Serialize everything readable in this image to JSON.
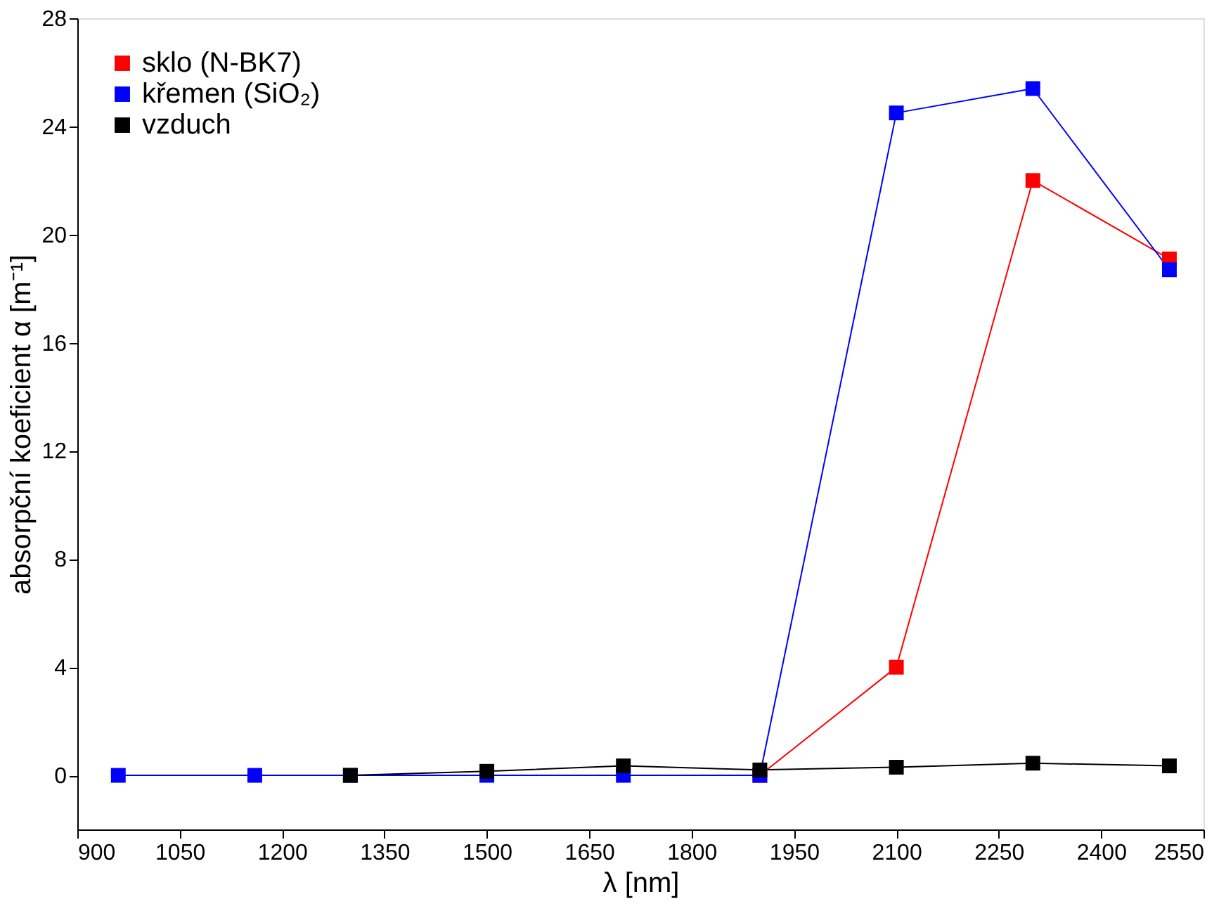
{
  "chart_data": {
    "type": "line",
    "xlabel": "λ [nm]",
    "ylabel": "absorpční koeficient α [m⁻¹]",
    "series": [
      {
        "name": "sklo (N-BK7)",
        "color": "#ff0000",
        "x": [
          1900,
          2100,
          2300,
          2500
        ],
        "values": [
          0,
          4.0,
          22.0,
          19.1
        ]
      },
      {
        "name": "křemen (SiO₂)",
        "color": "#0000ff",
        "x": [
          960,
          1160,
          1300,
          1500,
          1700,
          1900,
          2100,
          2300,
          2500
        ],
        "values": [
          0,
          0,
          0,
          0,
          0,
          0,
          24.5,
          25.4,
          18.7
        ]
      },
      {
        "name": "vzduch",
        "color": "#000000",
        "x": [
          1300,
          1500,
          1700,
          1900,
          2100,
          2300,
          2500
        ],
        "values": [
          0,
          0.15,
          0.35,
          0.2,
          0.3,
          0.45,
          0.35
        ]
      }
    ],
    "xlim": [
      900,
      2550
    ],
    "xticks": [
      900,
      1050,
      1200,
      1350,
      1500,
      1650,
      1800,
      1950,
      2100,
      2250,
      2400,
      2550
    ],
    "ylim": [
      -2,
      28
    ],
    "yticks": [
      0,
      4,
      8,
      12,
      16,
      20,
      24,
      28
    ],
    "grid": false,
    "legend": "top left",
    "marker": "square",
    "line_style": "solid"
  }
}
